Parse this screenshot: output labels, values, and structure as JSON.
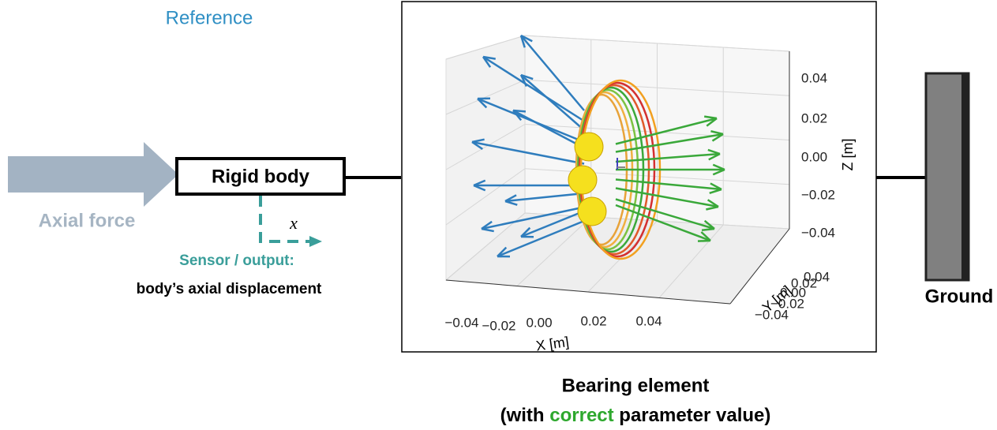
{
  "header": {
    "title": "Reference"
  },
  "input": {
    "label": "Axial force"
  },
  "body": {
    "label": "Rigid body"
  },
  "sensor": {
    "symbol": "x",
    "title": "Sensor / output:",
    "description": "body’s axial displacement"
  },
  "plot": {
    "z_ticks": [
      "0.04",
      "0.02",
      "0.00",
      "−0.02",
      "−0.04"
    ],
    "z_label": "Z [m]",
    "x_ticks": [
      "−0.04",
      "−0.02",
      "0.00",
      "0.02",
      "0.04"
    ],
    "x_label": "X [m]",
    "y_ticks": [
      "−0.04",
      "−0.02",
      "0.00",
      "0.02",
      "0.04"
    ],
    "y_label": "Y [m]"
  },
  "ground": {
    "label": "Ground"
  },
  "caption": {
    "title": "Bearing element",
    "note_before": "(with ",
    "note_highlight": "correct",
    "note_after": " parameter value)"
  }
}
